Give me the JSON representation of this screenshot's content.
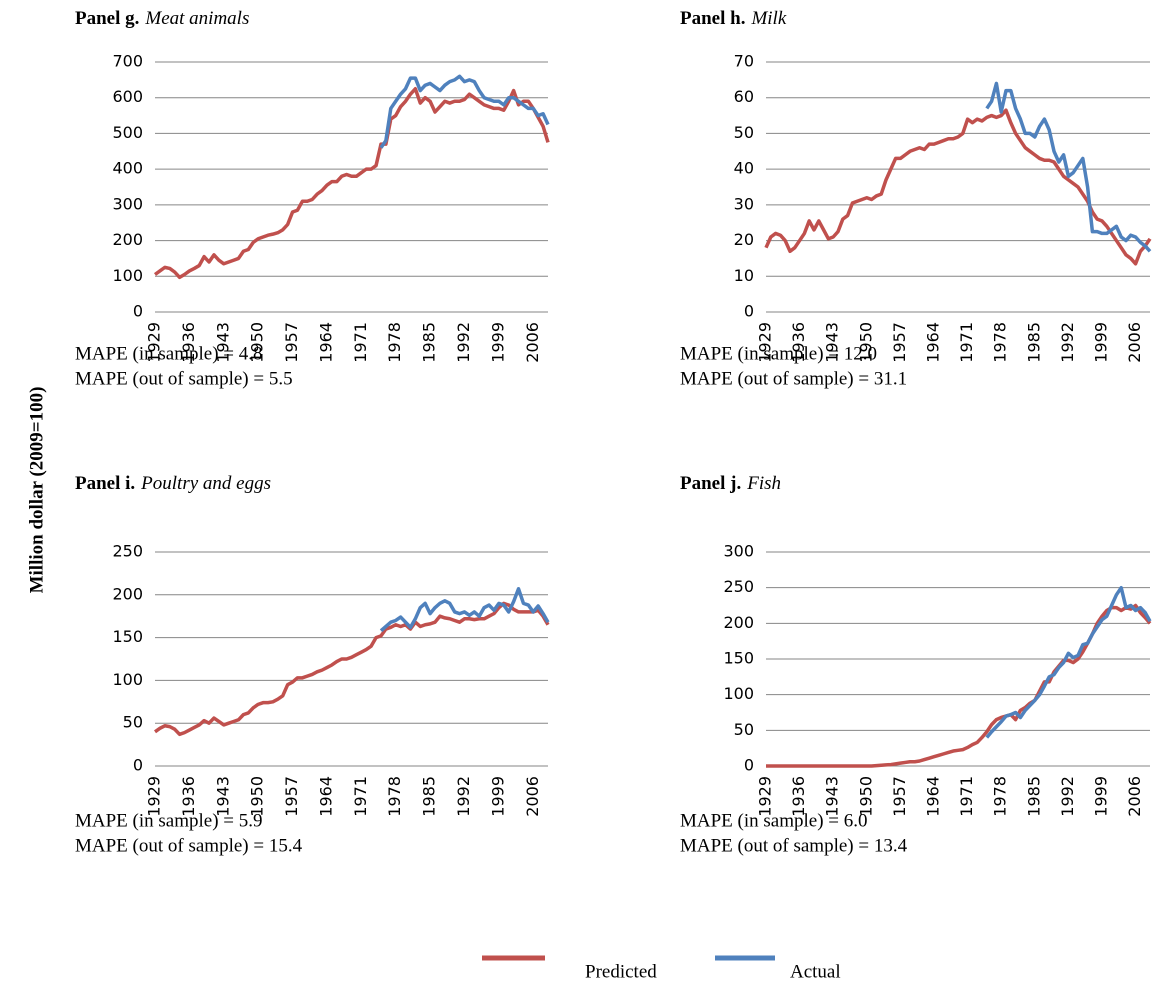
{
  "y_label": "Million dollar (2009=100)",
  "chart_data": [
    {
      "type": "line",
      "panel_label": "Panel g.",
      "title": "Meat animals",
      "annotations": [
        "MAPE (in sample) = 4.8",
        "MAPE (out of sample) = 5.5"
      ],
      "categories": [
        "1929",
        null,
        null,
        null,
        null,
        null,
        null,
        "1936",
        null,
        null,
        null,
        null,
        null,
        null,
        "1943",
        null,
        null,
        null,
        null,
        null,
        null,
        "1950",
        null,
        null,
        null,
        null,
        null,
        null,
        "1957",
        null,
        null,
        null,
        null,
        null,
        null,
        "1964",
        null,
        null,
        null,
        null,
        null,
        null,
        "1971",
        null,
        null,
        null,
        null,
        null,
        null,
        "1978",
        null,
        null,
        null,
        null,
        null,
        null,
        "1985",
        null,
        null,
        null,
        null,
        null,
        null,
        "1992",
        null,
        null,
        null,
        null,
        null,
        null,
        "1999",
        null,
        null,
        null,
        null,
        null,
        null,
        "2006",
        null,
        null,
        null
      ],
      "ylim": [
        0,
        700
      ],
      "yticks": [
        0,
        100,
        200,
        300,
        400,
        500,
        600,
        700
      ],
      "grid": true,
      "series": [
        {
          "name": "Predicted",
          "color": "#c0504d",
          "values": [
            105,
            115,
            125,
            122,
            112,
            97,
            105,
            115,
            122,
            130,
            155,
            140,
            160,
            145,
            135,
            140,
            145,
            150,
            170,
            175,
            195,
            205,
            210,
            215,
            218,
            222,
            230,
            245,
            280,
            285,
            310,
            310,
            315,
            330,
            340,
            355,
            365,
            365,
            380,
            385,
            380,
            380,
            390,
            400,
            400,
            410,
            470,
            470,
            540,
            550,
            575,
            590,
            610,
            625,
            585,
            600,
            590,
            560,
            575,
            590,
            585,
            590,
            590,
            595,
            610,
            600,
            590,
            580,
            575,
            570,
            570,
            565,
            590,
            620,
            580,
            590,
            590,
            570,
            545,
            520,
            475
          ]
        },
        {
          "name": "Actual",
          "color": "#4f81bd",
          "values": [
            null,
            null,
            null,
            null,
            null,
            null,
            null,
            null,
            null,
            null,
            null,
            null,
            null,
            null,
            null,
            null,
            null,
            null,
            null,
            null,
            null,
            null,
            null,
            null,
            null,
            null,
            null,
            null,
            null,
            null,
            null,
            null,
            null,
            null,
            null,
            null,
            null,
            null,
            null,
            null,
            null,
            null,
            null,
            null,
            null,
            null,
            460,
            480,
            570,
            590,
            610,
            625,
            655,
            655,
            620,
            635,
            640,
            630,
            620,
            635,
            645,
            650,
            660,
            645,
            650,
            645,
            620,
            600,
            595,
            590,
            590,
            580,
            600,
            600,
            590,
            580,
            570,
            570,
            550,
            555,
            525
          ]
        }
      ]
    },
    {
      "type": "line",
      "panel_label": "Panel h.",
      "title": "Milk",
      "annotations": [
        "MAPE (in sample) = 12.0",
        "MAPE (out of sample) = 31.1"
      ],
      "categories": [
        "1929",
        null,
        null,
        null,
        null,
        null,
        null,
        "1936",
        null,
        null,
        null,
        null,
        null,
        null,
        "1943",
        null,
        null,
        null,
        null,
        null,
        null,
        "1950",
        null,
        null,
        null,
        null,
        null,
        null,
        "1957",
        null,
        null,
        null,
        null,
        null,
        null,
        "1964",
        null,
        null,
        null,
        null,
        null,
        null,
        "1971",
        null,
        null,
        null,
        null,
        null,
        null,
        "1978",
        null,
        null,
        null,
        null,
        null,
        null,
        "1985",
        null,
        null,
        null,
        null,
        null,
        null,
        "1992",
        null,
        null,
        null,
        null,
        null,
        null,
        "1999",
        null,
        null,
        null,
        null,
        null,
        null,
        "2006",
        null,
        null,
        null
      ],
      "ylim": [
        0,
        70
      ],
      "yticks": [
        0,
        10,
        20,
        30,
        40,
        50,
        60,
        70
      ],
      "grid": true,
      "series": [
        {
          "color": "#c0504d",
          "values": [
            18,
            21,
            22,
            21.5,
            20,
            17,
            18,
            20,
            22,
            25.5,
            23,
            25.5,
            23,
            20.5,
            21,
            22.5,
            26,
            27,
            30.5,
            31,
            31.5,
            32,
            31.5,
            32.5,
            33,
            37,
            40,
            43,
            43,
            44,
            45,
            45.5,
            46,
            45.5,
            47,
            47,
            47.5,
            48,
            48.5,
            48.5,
            49,
            50,
            54,
            53,
            54,
            53.5,
            54.5,
            55,
            54.5,
            55,
            56.5,
            53,
            50,
            48,
            46,
            45,
            44,
            43,
            42.5,
            42.5,
            42,
            40,
            38,
            37,
            36,
            35,
            33,
            31,
            28,
            26,
            25.5,
            24,
            22,
            20,
            18,
            16,
            15,
            13.5,
            17,
            18.5,
            20.5
          ]
        },
        {
          "color": "#4f81bd",
          "values": [
            null,
            null,
            null,
            null,
            null,
            null,
            null,
            null,
            null,
            null,
            null,
            null,
            null,
            null,
            null,
            null,
            null,
            null,
            null,
            null,
            null,
            null,
            null,
            null,
            null,
            null,
            null,
            null,
            null,
            null,
            null,
            null,
            null,
            null,
            null,
            null,
            null,
            null,
            null,
            null,
            null,
            null,
            null,
            null,
            null,
            null,
            57,
            59,
            64,
            56,
            62,
            62,
            57,
            54,
            50,
            50,
            49,
            52,
            54,
            51,
            45,
            42,
            44,
            38,
            39,
            41,
            43,
            35,
            22.5,
            22.5,
            22,
            22,
            23,
            24,
            21,
            20,
            21.5,
            21,
            19.5,
            18.5,
            17
          ]
        }
      ]
    },
    {
      "type": "line",
      "panel_label": "Panel i.",
      "title": "Poultry and eggs",
      "annotations": [
        "MAPE (in sample) = 5.9",
        "MAPE (out of sample) = 15.4"
      ],
      "categories": [
        "1929",
        null,
        null,
        null,
        null,
        null,
        null,
        "1936",
        null,
        null,
        null,
        null,
        null,
        null,
        "1943",
        null,
        null,
        null,
        null,
        null,
        null,
        "1950",
        null,
        null,
        null,
        null,
        null,
        null,
        "1957",
        null,
        null,
        null,
        null,
        null,
        null,
        "1964",
        null,
        null,
        null,
        null,
        null,
        null,
        "1971",
        null,
        null,
        null,
        null,
        null,
        null,
        "1978",
        null,
        null,
        null,
        null,
        null,
        null,
        "1985",
        null,
        null,
        null,
        null,
        null,
        null,
        "1992",
        null,
        null,
        null,
        null,
        null,
        null,
        "1999",
        null,
        null,
        null,
        null,
        null,
        null,
        "2006",
        null,
        null,
        null
      ],
      "ylim": [
        0,
        250
      ],
      "yticks": [
        0,
        50,
        100,
        150,
        200,
        250
      ],
      "grid": true,
      "series": [
        {
          "color": "#c0504d",
          "values": [
            40,
            44,
            47,
            46,
            43,
            37,
            39,
            42,
            45,
            48,
            53,
            50,
            56,
            52,
            48,
            50,
            52,
            54,
            60,
            62,
            68,
            72,
            74,
            74,
            75,
            78,
            82,
            95,
            98,
            103,
            103,
            105,
            107,
            110,
            112,
            115,
            118,
            122,
            125,
            125,
            127,
            130,
            133,
            136,
            140,
            150,
            152,
            160,
            162,
            165,
            163,
            165,
            160,
            168,
            163,
            165,
            166,
            168,
            175,
            173,
            172,
            170,
            168,
            172,
            172,
            171,
            172,
            172,
            175,
            178,
            185,
            190,
            188,
            183,
            180,
            180,
            180,
            180,
            182,
            175,
            165
          ]
        },
        {
          "color": "#4f81bd",
          "values": [
            null,
            null,
            null,
            null,
            null,
            null,
            null,
            null,
            null,
            null,
            null,
            null,
            null,
            null,
            null,
            null,
            null,
            null,
            null,
            null,
            null,
            null,
            null,
            null,
            null,
            null,
            null,
            null,
            null,
            null,
            null,
            null,
            null,
            null,
            null,
            null,
            null,
            null,
            null,
            null,
            null,
            null,
            null,
            null,
            null,
            null,
            158,
            163,
            168,
            170,
            174,
            168,
            162,
            172,
            185,
            190,
            178,
            185,
            190,
            193,
            190,
            180,
            178,
            180,
            176,
            180,
            175,
            185,
            188,
            182,
            190,
            188,
            180,
            192,
            207,
            190,
            188,
            180,
            187,
            178,
            168
          ]
        }
      ]
    },
    {
      "type": "line",
      "panel_label": "Panel j.",
      "title": "Fish",
      "annotations": [
        "MAPE (in sample) = 6.0",
        "MAPE (out of sample) = 13.4"
      ],
      "categories": [
        "1929",
        null,
        null,
        null,
        null,
        null,
        null,
        "1936",
        null,
        null,
        null,
        null,
        null,
        null,
        "1943",
        null,
        null,
        null,
        null,
        null,
        null,
        "1950",
        null,
        null,
        null,
        null,
        null,
        null,
        "1957",
        null,
        null,
        null,
        null,
        null,
        null,
        "1964",
        null,
        null,
        null,
        null,
        null,
        null,
        "1971",
        null,
        null,
        null,
        null,
        null,
        null,
        "1978",
        null,
        null,
        null,
        null,
        null,
        null,
        "1985",
        null,
        null,
        null,
        null,
        null,
        null,
        "1992",
        null,
        null,
        null,
        null,
        null,
        null,
        "1999",
        null,
        null,
        null,
        null,
        null,
        null,
        "2006",
        null,
        null,
        null
      ],
      "ylim": [
        0,
        300
      ],
      "yticks": [
        0,
        50,
        100,
        150,
        200,
        250,
        300
      ],
      "grid": true,
      "series": [
        {
          "color": "#c0504d",
          "values": [
            0,
            0,
            0,
            0,
            0,
            0,
            0,
            0,
            0,
            0,
            0,
            0,
            0,
            0,
            0,
            0,
            0,
            0,
            0,
            0,
            0,
            0,
            0,
            0.5,
            1,
            1.5,
            2,
            3,
            4,
            5,
            6,
            6,
            7,
            9,
            11,
            13,
            15,
            17,
            19,
            21,
            22,
            23,
            26,
            30,
            33,
            40,
            48,
            58,
            65,
            68,
            70,
            72,
            65,
            78,
            82,
            88,
            92,
            105,
            118,
            118,
            132,
            140,
            148,
            148,
            145,
            150,
            160,
            172,
            185,
            200,
            210,
            218,
            222,
            222,
            218,
            222,
            220,
            225,
            215,
            208,
            200
          ]
        },
        {
          "color": "#4f81bd",
          "values": [
            null,
            null,
            null,
            null,
            null,
            null,
            null,
            null,
            null,
            null,
            null,
            null,
            null,
            null,
            null,
            null,
            null,
            null,
            null,
            null,
            null,
            null,
            null,
            null,
            null,
            null,
            null,
            null,
            null,
            null,
            null,
            null,
            null,
            null,
            null,
            null,
            null,
            null,
            null,
            null,
            null,
            null,
            null,
            null,
            null,
            null,
            40,
            48,
            55,
            62,
            70,
            72,
            75,
            68,
            78,
            85,
            92,
            100,
            112,
            125,
            128,
            138,
            145,
            158,
            152,
            155,
            170,
            172,
            185,
            195,
            205,
            210,
            225,
            240,
            250,
            222,
            225,
            218,
            222,
            215,
            203
          ]
        }
      ]
    }
  ]
}
